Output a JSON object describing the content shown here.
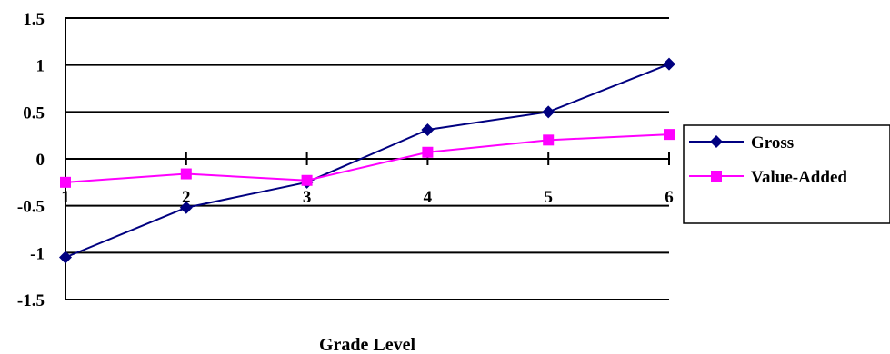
{
  "chart_data": {
    "type": "line",
    "categories": [
      "1",
      "2",
      "3",
      "4",
      "5",
      "6"
    ],
    "series": [
      {
        "name": "Gross",
        "color": "#000080",
        "marker": "diamond",
        "values": [
          -1.05,
          -0.52,
          -0.25,
          0.31,
          0.5,
          1.01
        ]
      },
      {
        "name": "Value-Added",
        "color": "#ff00ff",
        "marker": "square",
        "values": [
          -0.25,
          -0.16,
          -0.23,
          0.07,
          0.2,
          0.26
        ]
      }
    ],
    "title": "",
    "xlabel": "Grade Level",
    "ylabel": "",
    "ylim": [
      -1.5,
      1.5
    ],
    "yticks": [
      "1.5",
      "1",
      "0.5",
      "0",
      "-0.5",
      "-1",
      "-1.5"
    ],
    "grid": "horizontal",
    "legend_position": "right"
  }
}
